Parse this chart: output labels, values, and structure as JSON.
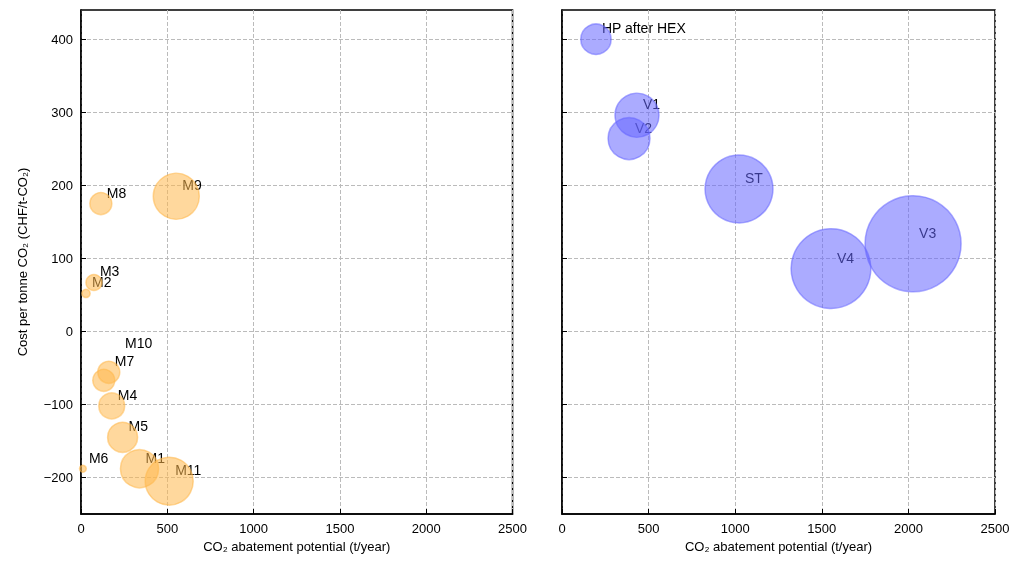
{
  "chart_data": [
    {
      "type": "bubble",
      "xlabel": "CO₂ abatement potential (t/year)",
      "ylabel": "Cost per tonne CO₂ (CHF/t-CO₂)",
      "xlim": [
        0,
        2500
      ],
      "ylim": [
        -250,
        440
      ],
      "xticks": [
        0,
        500,
        1000,
        1500,
        2000,
        2500
      ],
      "yticks": [
        -200,
        -100,
        0,
        100,
        200,
        300,
        400
      ],
      "grid": true,
      "line_style": "dashed",
      "series": [
        {
          "color": "#ffb84d",
          "x": [
            339,
            29,
            75,
            178,
            241,
            11,
            161,
            115,
            552,
            132,
            511
          ],
          "values": [
            -188,
            52,
            67,
            -102,
            -145,
            -188,
            -56,
            175,
            185,
            -67,
            -205
          ],
          "sizes": [
            0.63,
            0.03,
            0.11,
            0.29,
            0.39,
            0.02,
            0.21,
            0.21,
            0.92,
            0.21,
            1
          ]
        }
      ],
      "annotations": [
        {
          "text": "M1",
          "x": 339,
          "y": -188
        },
        {
          "text": "M2",
          "x": 29,
          "y": 52
        },
        {
          "text": "M3",
          "x": 75,
          "y": 67
        },
        {
          "text": "M4",
          "x": 178,
          "y": -102
        },
        {
          "text": "M5",
          "x": 241,
          "y": -145
        },
        {
          "text": "M6",
          "x": 11,
          "y": -188
        },
        {
          "text": "M7",
          "x": 161,
          "y": -56
        },
        {
          "text": "M8",
          "x": 115,
          "y": 175
        },
        {
          "text": "M9",
          "x": 552,
          "y": 185
        },
        "M10",
        {
          "text": "M11",
          "x": 511,
          "y": -205
        }
      ]
    },
    {
      "type": "bubble",
      "xlabel": "CO₂ abatement potential (t/year)",
      "xlim": [
        0,
        2500
      ],
      "ylim": [
        -250,
        440
      ],
      "xticks": [
        0,
        500,
        1000,
        1500,
        2000,
        2500
      ],
      "yticks": [
        -200,
        -100,
        0,
        100,
        200,
        300,
        400
      ],
      "grid": true,
      "line_style": "dashed",
      "tick_labels": "x",
      "series": [
        {
          "color": "#6666ff",
          "x": [
            196,
            433,
            387,
            1022,
            1553,
            2027
          ],
          "values": [
            400,
            296,
            264,
            195,
            86,
            120
          ],
          "sizes": [
            0.1,
            0.21,
            0.19,
            0.5,
            0.69,
            1
          ]
        }
      ],
      "annotations": [
        {
          "text": "HP after HEX",
          "x": 196,
          "y": 400
        },
        {
          "text": "V1",
          "x": 433,
          "y": 296
        },
        {
          "text": "V2",
          "x": 387,
          "y": 264
        },
        {
          "text": "ST",
          "x": 1022,
          "y": 195
        },
        {
          "text": "V4",
          "x": 1553,
          "y": 86
        },
        {
          "text": "V3",
          "x": 2027,
          "y": 120
        }
      ]
    }
  ]
}
